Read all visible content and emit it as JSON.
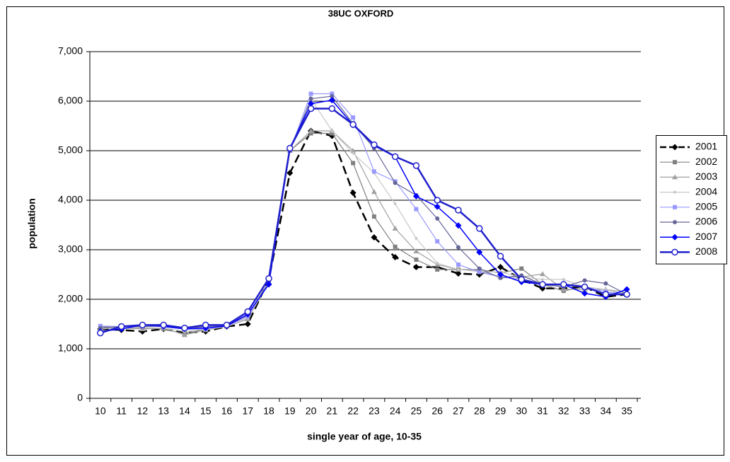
{
  "chart_data": {
    "type": "line",
    "title": "38UC OXFORD",
    "x_label": "single year of age, 10-35",
    "y_label": "population",
    "categories": [
      "10",
      "11",
      "12",
      "13",
      "14",
      "15",
      "16",
      "17",
      "18",
      "19",
      "20",
      "21",
      "22",
      "23",
      "24",
      "25",
      "26",
      "27",
      "28",
      "29",
      "30",
      "31",
      "32",
      "33",
      "34",
      "35"
    ],
    "ylim": [
      0,
      7000
    ],
    "yticks": [
      0,
      {
        "value": 1000,
        "label": "1,000"
      },
      {
        "value": 2000,
        "label": "2,000"
      },
      {
        "value": 3000,
        "label": "3,000"
      },
      {
        "value": 4000,
        "label": "4,000"
      },
      {
        "value": 5000,
        "label": "5,000"
      },
      {
        "value": 6000,
        "label": "6,000"
      },
      {
        "value": 7000,
        "label": "7,000"
      }
    ],
    "grid": true,
    "legend": "right",
    "series": [
      {
        "name": "2001",
        "color": "#000000",
        "marker": "diamond",
        "dash": true,
        "width": 2.5,
        "values": [
          1400,
          1380,
          1350,
          1400,
          1320,
          1350,
          1450,
          1500,
          2400,
          4550,
          5400,
          5300,
          4150,
          3250,
          2850,
          2650,
          2650,
          2520,
          2500,
          2650,
          2400,
          2220,
          2220,
          2250,
          2050,
          2100
        ]
      },
      {
        "name": "2002",
        "color": "#808080",
        "marker": "square",
        "dash": false,
        "width": 1.2,
        "values": [
          1450,
          1430,
          1420,
          1400,
          1300,
          1400,
          1450,
          1600,
          2350,
          5000,
          5350,
          5350,
          4750,
          3670,
          3060,
          2800,
          2600,
          2600,
          2600,
          2530,
          2620,
          2300,
          2170,
          2250,
          2150,
          2100
        ]
      },
      {
        "name": "2003",
        "color": "#a0a0a0",
        "marker": "triangle",
        "dash": false,
        "width": 1.2,
        "values": [
          1420,
          1420,
          1400,
          1420,
          1280,
          1380,
          1450,
          1600,
          2350,
          5000,
          5400,
          5400,
          5000,
          4170,
          3430,
          2970,
          2700,
          2600,
          2580,
          2450,
          2450,
          2510,
          2200,
          2200,
          2200,
          2100
        ]
      },
      {
        "name": "2004",
        "color": "#c8c8c8",
        "marker": "dot",
        "dash": false,
        "width": 1.2,
        "values": [
          1400,
          1430,
          1430,
          1420,
          1350,
          1400,
          1450,
          1620,
          2350,
          5000,
          6050,
          5400,
          4950,
          4550,
          3930,
          3230,
          2730,
          2600,
          2560,
          2550,
          2450,
          2400,
          2400,
          2250,
          2200,
          2150
        ]
      },
      {
        "name": "2005",
        "color": "#9999ff",
        "marker": "square",
        "dash": false,
        "width": 1.2,
        "values": [
          1460,
          1450,
          1450,
          1460,
          1400,
          1400,
          1460,
          1650,
          2350,
          5000,
          6150,
          6150,
          5670,
          4580,
          4380,
          3820,
          3170,
          2700,
          2550,
          2450,
          2400,
          2300,
          2300,
          2250,
          2150,
          2100
        ]
      },
      {
        "name": "2006",
        "color": "#666699",
        "marker": "circle",
        "dash": false,
        "width": 1.2,
        "values": [
          1420,
          1450,
          1450,
          1460,
          1400,
          1450,
          1460,
          1680,
          2350,
          5000,
          6050,
          6100,
          5550,
          5050,
          4350,
          4100,
          3630,
          3050,
          2620,
          2430,
          2480,
          2300,
          2250,
          2380,
          2320,
          2100
        ]
      },
      {
        "name": "2007",
        "color": "#0000ff",
        "marker": "diamond",
        "dash": false,
        "width": 1.5,
        "values": [
          1350,
          1400,
          1480,
          1450,
          1400,
          1420,
          1460,
          1700,
          2300,
          5050,
          5950,
          6020,
          5520,
          5100,
          4880,
          4080,
          3870,
          3490,
          2950,
          2500,
          2350,
          2300,
          2300,
          2120,
          2050,
          2200
        ]
      },
      {
        "name": "2008",
        "color": "#1f1fcc",
        "marker": "open-circle",
        "dash": false,
        "width": 2.5,
        "values": [
          1320,
          1450,
          1480,
          1480,
          1420,
          1480,
          1480,
          1750,
          2420,
          5050,
          5850,
          5850,
          5530,
          5120,
          4880,
          4700,
          4000,
          3800,
          3430,
          2870,
          2400,
          2300,
          2300,
          2250,
          2100,
          2100
        ]
      }
    ]
  }
}
